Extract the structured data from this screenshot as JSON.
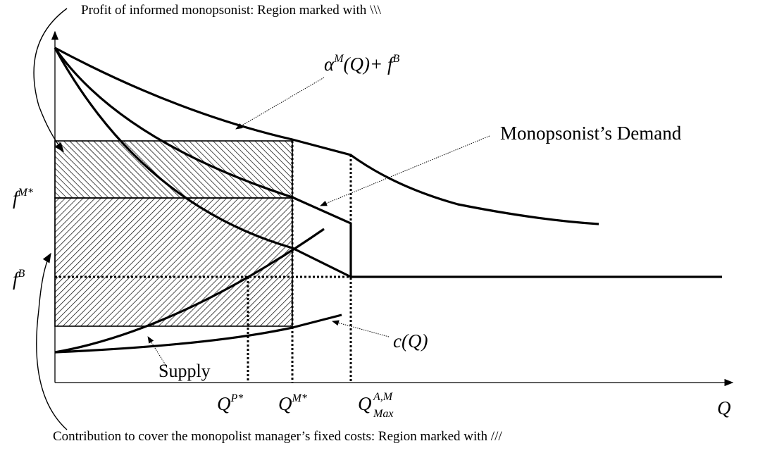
{
  "annotations": {
    "top": "Profit of informed monopsonist: Region marked with \\\\\\",
    "bottom": "Contribution to cover the monopolist manager’s fixed costs: Region marked with  ///"
  },
  "curve_labels": {
    "alpha": {
      "base": "α",
      "sup": "M",
      "rest": "(Q)+ f",
      "sup2": "B"
    },
    "demand": "Monopsonist’s Demand",
    "cost": "c(Q)",
    "supply": "Supply"
  },
  "y_labels": {
    "f_m": {
      "base": "f",
      "sup": "M*"
    },
    "f_b": {
      "base": "f",
      "sup": "B"
    }
  },
  "x_labels": {
    "q_p": {
      "base": "Q",
      "sup": "P*"
    },
    "q_m": {
      "base": "Q",
      "sup": "M*"
    },
    "q_max": {
      "base": "Q",
      "sup": "A,M",
      "sub": "Max"
    },
    "q": "Q"
  }
}
